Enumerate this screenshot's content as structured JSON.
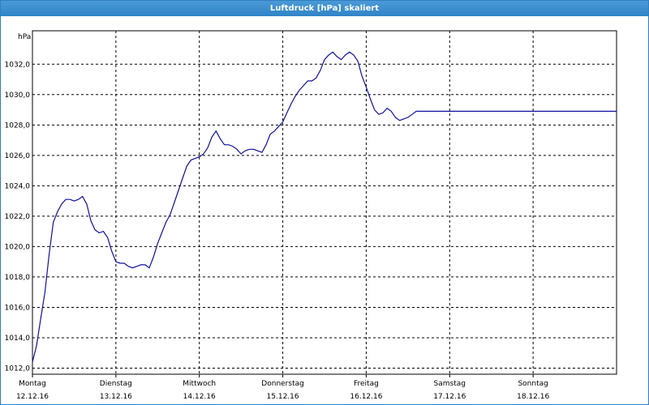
{
  "window": {
    "title": "Luftdruck [hPa] skaliert"
  },
  "chart_data": {
    "type": "line",
    "title": "Luftdruck [hPa] skaliert",
    "ylabel": "hPa",
    "ylim": [
      1011.6,
      1034.2
    ],
    "yticks": [
      "1012,0",
      "1014,0",
      "1016,0",
      "1018,0",
      "1020,0",
      "1022,0",
      "1024,0",
      "1026,0",
      "1028,0",
      "1030,0",
      "1032,0"
    ],
    "ytick_values": [
      1012,
      1014,
      1016,
      1018,
      1020,
      1022,
      1024,
      1026,
      1028,
      1030,
      1032
    ],
    "xlim": [
      0,
      7
    ],
    "xticks": [
      {
        "day": "Montag",
        "date": "12.12.16",
        "x": 0
      },
      {
        "day": "Dienstag",
        "date": "13.12.16",
        "x": 1
      },
      {
        "day": "Mittwoch",
        "date": "14.12.16",
        "x": 2
      },
      {
        "day": "Donnerstag",
        "date": "15.12.16",
        "x": 3
      },
      {
        "day": "Freitag",
        "date": "16.12.16",
        "x": 4
      },
      {
        "day": "Samstag",
        "date": "17.12.16",
        "x": 5
      },
      {
        "day": "Sonntag",
        "date": "18.12.16",
        "x": 6
      }
    ],
    "grid": true,
    "series": [
      {
        "color": "#1010a0",
        "x": [
          0,
          0.05,
          0.1,
          0.15,
          0.2,
          0.25,
          0.3,
          0.35,
          0.4,
          0.45,
          0.5,
          0.55,
          0.6,
          0.65,
          0.7,
          0.75,
          0.8,
          0.85,
          0.9,
          0.95,
          1.0,
          1.05,
          1.1,
          1.15,
          1.2,
          1.25,
          1.3,
          1.35,
          1.4,
          1.45,
          1.5,
          1.55,
          1.6,
          1.65,
          1.7,
          1.75,
          1.8,
          1.85,
          1.9,
          1.95,
          2.0,
          2.05,
          2.1,
          2.15,
          2.2,
          2.25,
          2.3,
          2.35,
          2.4,
          2.45,
          2.5,
          2.55,
          2.6,
          2.65,
          2.7,
          2.75,
          2.8,
          2.85,
          2.9,
          2.95,
          3.0,
          3.05,
          3.1,
          3.15,
          3.2,
          3.25,
          3.3,
          3.35,
          3.4,
          3.45,
          3.5,
          3.55,
          3.6,
          3.65,
          3.7,
          3.75,
          3.8,
          3.85,
          3.9,
          3.95,
          4.0,
          4.05,
          4.1,
          4.15,
          4.2,
          4.25,
          4.3,
          4.35,
          4.4,
          4.45,
          4.5,
          4.55,
          4.6,
          4.65,
          4.7,
          4.75,
          4.8,
          4.85,
          4.9,
          4.95,
          5.0,
          5.05,
          5.1,
          5.15,
          5.2,
          5.25,
          5.3,
          5.35,
          5.4,
          5.45,
          5.5,
          5.55,
          5.6,
          5.65,
          5.7,
          5.75,
          5.8,
          5.85,
          5.9,
          5.95,
          6.0,
          6.05,
          6.1,
          6.15,
          6.2,
          6.25,
          6.3,
          6.35,
          6.4,
          6.45,
          6.5,
          6.55,
          6.6,
          6.65,
          6.7,
          6.75,
          6.8,
          6.85,
          6.9,
          6.95,
          7.0
        ],
        "y": [
          1012.4,
          1013.5,
          1015.3,
          1017.0,
          1019.5,
          1021.6,
          1022.3,
          1022.8,
          1023.1,
          1023.1,
          1023.0,
          1023.1,
          1023.3,
          1022.8,
          1021.7,
          1021.1,
          1020.9,
          1021.0,
          1020.6,
          1019.7,
          1019.0,
          1018.9,
          1018.9,
          1018.7,
          1018.6,
          1018.7,
          1018.8,
          1018.8,
          1018.6,
          1019.3,
          1020.2,
          1020.9,
          1021.6,
          1022.1,
          1022.9,
          1023.7,
          1024.5,
          1025.3,
          1025.7,
          1025.8,
          1025.9,
          1026.1,
          1026.5,
          1027.2,
          1027.6,
          1027.1,
          1026.7,
          1026.7,
          1026.6,
          1026.4,
          1026.1,
          1026.3,
          1026.4,
          1026.4,
          1026.3,
          1026.2,
          1026.7,
          1027.4,
          1027.6,
          1027.9,
          1028.2,
          1028.8,
          1029.4,
          1029.9,
          1030.3,
          1030.6,
          1030.9,
          1030.9,
          1031.1,
          1031.6,
          1032.3,
          1032.6,
          1032.8,
          1032.5,
          1032.3,
          1032.6,
          1032.8,
          1032.6,
          1032.2,
          1031.2,
          1030.5,
          1029.7,
          1029.0,
          1028.7,
          1028.8,
          1029.1,
          1028.9,
          1028.5,
          1028.3,
          1028.4,
          1028.5,
          1028.7,
          1028.9,
          1028.9,
          1028.9,
          1028.9,
          1028.9,
          1028.9,
          1028.9,
          1028.9,
          1028.9,
          1028.9,
          1028.9,
          1028.9,
          1028.9,
          1028.9,
          1028.9,
          1028.9,
          1028.9,
          1028.9,
          1028.9,
          1028.9,
          1028.9,
          1028.9,
          1028.9,
          1028.9,
          1028.9,
          1028.9,
          1028.9,
          1028.9,
          1028.9,
          1028.9,
          1028.9,
          1028.9,
          1028.9,
          1028.9,
          1028.9,
          1028.9,
          1028.9,
          1028.9,
          1028.9,
          1028.9,
          1028.9,
          1028.9,
          1028.9,
          1028.9,
          1028.9,
          1028.9,
          1028.9,
          1028.9,
          1028.9
        ]
      }
    ]
  }
}
